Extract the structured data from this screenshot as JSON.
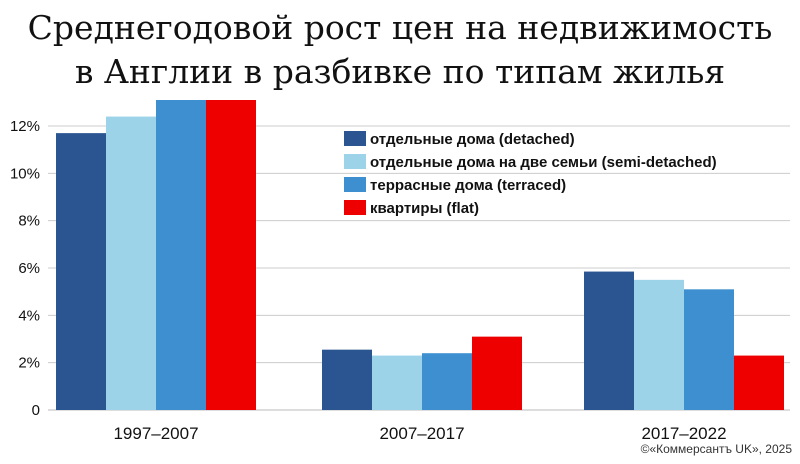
{
  "chart_data": {
    "type": "bar",
    "title": "Среднегодовой рост цен на недвижимость\nв Англии в разбивке по типам жилья",
    "categories": [
      "1997–2007",
      "2007–2017",
      "2017–2022"
    ],
    "series": [
      {
        "name": "отдельные дома (detached)",
        "color": "#2a5590",
        "values": [
          11.7,
          2.55,
          5.85
        ]
      },
      {
        "name": "отдельные дома на две семьи (semi-detached)",
        "color": "#9dd3e9",
        "values": [
          12.4,
          2.3,
          5.5
        ]
      },
      {
        "name": "террасные дома (terraced)",
        "color": "#3d8fd0",
        "values": [
          13.1,
          2.4,
          5.1
        ]
      },
      {
        "name": "квартиры (flat)",
        "color": "#ee0000",
        "values": [
          13.1,
          3.1,
          2.3
        ]
      }
    ],
    "y_ticks": [
      "0",
      "2%",
      "4%",
      "6%",
      "8%",
      "10%",
      "12%"
    ],
    "ylim": [
      0,
      13.1
    ],
    "grid": true,
    "legend_position": "top-right"
  },
  "credit": "©«Коммерсантъ UK», 2025"
}
